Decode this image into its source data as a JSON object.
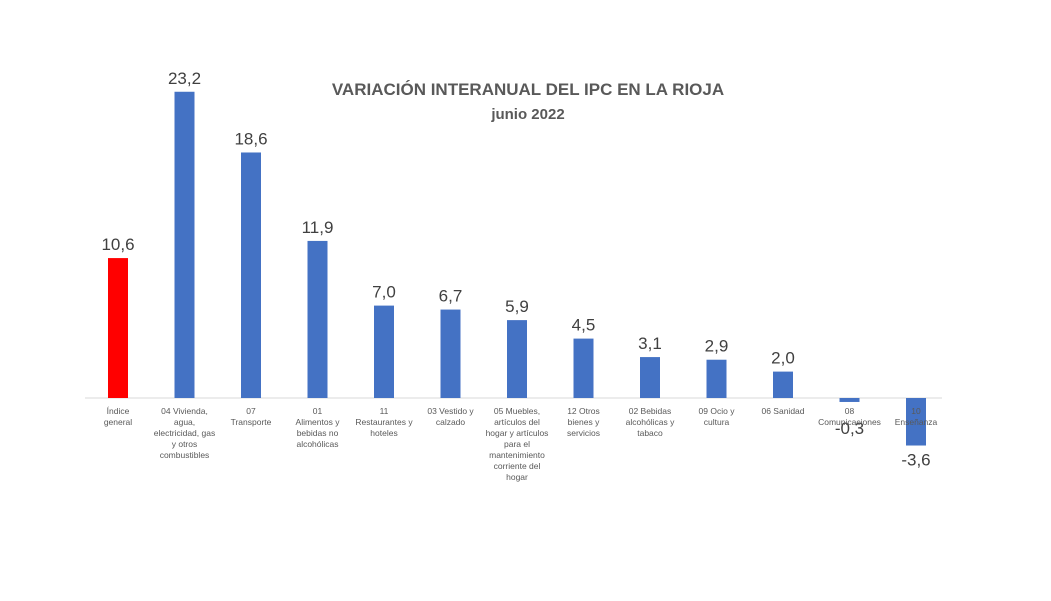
{
  "chart_data": {
    "type": "bar",
    "title": "VARIACIÓN INTERANUAL DEL IPC EN LA RIOJA",
    "subtitle": "junio 2022",
    "categories": [
      "Índice general",
      "04 Vivienda, agua, electricidad, gas y otros combustibles",
      "07 Transporte",
      "01 Alimentos y bebidas no alcohólicas",
      "11 Restaurantes y hoteles",
      "03 Vestido y calzado",
      "05 Muebles, artículos del hogar y artículos para el mantenimiento corriente del hogar",
      "12 Otros bienes y servicios",
      "02 Bebidas alcohólicas y tabaco",
      "09 Ocio y cultura",
      "06 Sanidad",
      "08 Comunicaciones",
      "10 Enseñanza"
    ],
    "category_label_lines": [
      [
        "Índice",
        "general"
      ],
      [
        "04 Vivienda,",
        "agua,",
        "electricidad, gas",
        "y otros",
        "combustibles"
      ],
      [
        "07",
        "Transporte"
      ],
      [
        "01",
        "Alimentos y",
        "bebidas no",
        "alcohólicas"
      ],
      [
        "11",
        "Restaurantes y",
        "hoteles"
      ],
      [
        "03 Vestido y",
        "calzado"
      ],
      [
        "05 Muebles,",
        "artículos del",
        "hogar y artículos",
        "para el",
        "mantenimiento",
        "corriente del",
        "hogar"
      ],
      [
        "12 Otros",
        "bienes y",
        "servicios"
      ],
      [
        "02 Bebidas",
        "alcohólicas y",
        "tabaco"
      ],
      [
        "09 Ocio y",
        "cultura"
      ],
      [
        "06 Sanidad"
      ],
      [
        "08",
        "Comunicaciones"
      ],
      [
        "10",
        "Enseñanza"
      ]
    ],
    "values": [
      10.6,
      23.2,
      18.6,
      11.9,
      7.0,
      6.7,
      5.9,
      4.5,
      3.1,
      2.9,
      2.0,
      -0.3,
      -3.6
    ],
    "value_labels": [
      "10,6",
      "23,2",
      "18,6",
      "11,9",
      "7,0",
      "6,7",
      "5,9",
      "4,5",
      "3,1",
      "2,9",
      "2,0",
      "-0,3",
      "-3,6"
    ],
    "colors": [
      "#ff0000",
      "#4472c4",
      "#4472c4",
      "#4472c4",
      "#4472c4",
      "#4472c4",
      "#4472c4",
      "#4472c4",
      "#4472c4",
      "#4472c4",
      "#4472c4",
      "#4472c4",
      "#4472c4"
    ],
    "xlabel": "",
    "ylabel": "",
    "grid": false,
    "legend": "none"
  }
}
